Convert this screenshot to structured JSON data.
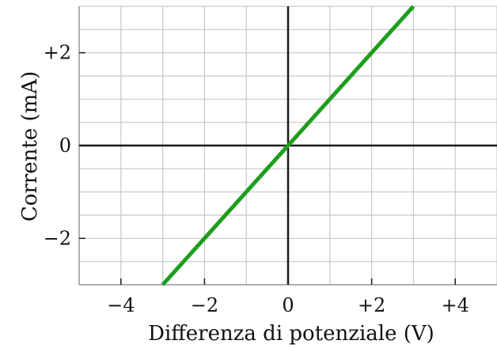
{
  "chart_data": {
    "type": "line",
    "xlabel": "Differenza di potenziale (V)",
    "ylabel": "Corrente (mA)",
    "xlim": [
      -5,
      5
    ],
    "ylim": [
      -3,
      3
    ],
    "grid": true,
    "x_ticks": [
      -4,
      -2,
      0,
      2,
      4
    ],
    "x_tick_labels": [
      "−4",
      "−2",
      "0",
      "+2",
      "+4"
    ],
    "y_ticks": [
      -2,
      0,
      2
    ],
    "y_tick_labels": [
      "−2",
      "0",
      "+2"
    ],
    "series": [
      {
        "x": [
          -3.0,
          3.0
        ],
        "y": [
          -3.0,
          3.0
        ],
        "color": "#1e9e1e"
      }
    ],
    "colors": {
      "grid": "#c8c8c8",
      "axis": "#1a1a1a",
      "frame": "#999999",
      "line": "#1e9e1e"
    }
  }
}
